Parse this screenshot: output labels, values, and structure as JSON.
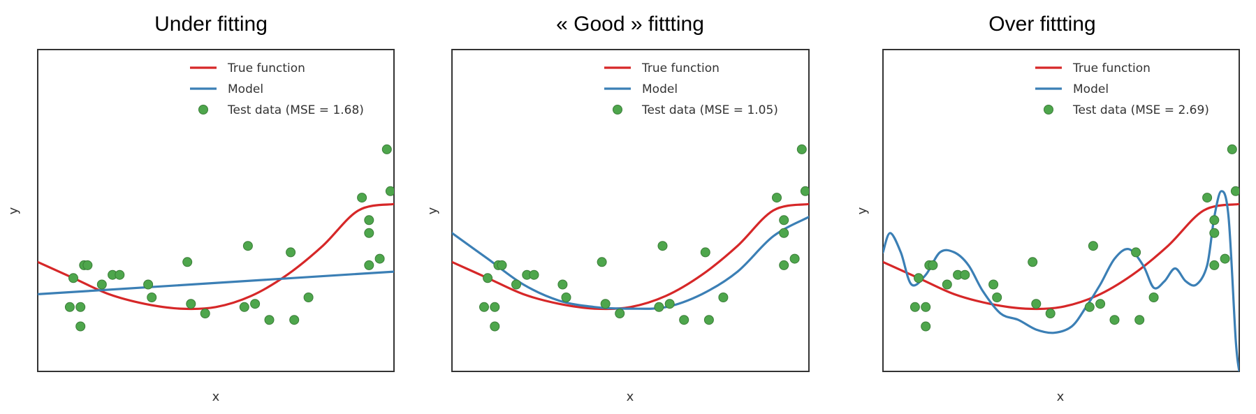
{
  "colors": {
    "true_function": "#d62728",
    "model": "#3b7fb5",
    "test_data": "#4ea64c",
    "test_data_edge": "#3a7d38",
    "frame": "#333333"
  },
  "chart_data": [
    {
      "type": "line",
      "title": "Under fitting",
      "xlabel": "x",
      "ylabel": "y",
      "xlim": [
        0,
        1
      ],
      "ylim": [
        0,
        1
      ],
      "grid": false,
      "legend_position": "top-right",
      "legend": [
        "True function",
        "Model",
        "Test data (MSE = 1.68)"
      ],
      "series": [
        {
          "name": "True function",
          "kind": "line",
          "x": [
            0.0,
            0.1,
            0.2,
            0.3,
            0.4,
            0.5,
            0.6,
            0.7,
            0.8,
            0.9,
            1.0
          ],
          "y": [
            0.34,
            0.29,
            0.24,
            0.21,
            0.195,
            0.2,
            0.235,
            0.3,
            0.39,
            0.5,
            0.52
          ]
        },
        {
          "name": "Model",
          "kind": "line",
          "x": [
            0.0,
            1.0
          ],
          "y": [
            0.24,
            0.31
          ]
        },
        {
          "name": "Test data (MSE = 1.68)",
          "kind": "scatter",
          "x": [
            0.09,
            0.1,
            0.12,
            0.12,
            0.13,
            0.14,
            0.18,
            0.21,
            0.23,
            0.31,
            0.32,
            0.42,
            0.43,
            0.47,
            0.58,
            0.59,
            0.61,
            0.65,
            0.71,
            0.72,
            0.76,
            0.91,
            0.93,
            0.93,
            0.93,
            0.96,
            0.98,
            0.99
          ],
          "y": [
            0.2,
            0.29,
            0.14,
            0.2,
            0.33,
            0.33,
            0.27,
            0.3,
            0.3,
            0.27,
            0.23,
            0.34,
            0.21,
            0.18,
            0.2,
            0.39,
            0.21,
            0.16,
            0.37,
            0.16,
            0.23,
            0.54,
            0.33,
            0.43,
            0.47,
            0.35,
            0.69,
            0.56
          ]
        }
      ]
    },
    {
      "type": "line",
      "title": "« Good » fittting",
      "xlabel": "x",
      "ylabel": "y",
      "xlim": [
        0,
        1
      ],
      "ylim": [
        0,
        1
      ],
      "grid": false,
      "legend_position": "top-right",
      "legend": [
        "True function",
        "Model",
        "Test data (MSE = 1.05)"
      ],
      "series": [
        {
          "name": "True function",
          "kind": "line",
          "x": [
            0.0,
            0.1,
            0.2,
            0.3,
            0.4,
            0.5,
            0.6,
            0.7,
            0.8,
            0.9,
            1.0
          ],
          "y": [
            0.34,
            0.29,
            0.24,
            0.21,
            0.195,
            0.2,
            0.235,
            0.3,
            0.39,
            0.5,
            0.52
          ]
        },
        {
          "name": "Model",
          "kind": "line",
          "x": [
            0.0,
            0.1,
            0.2,
            0.3,
            0.4,
            0.5,
            0.6,
            0.7,
            0.8,
            0.9,
            1.0
          ],
          "y": [
            0.43,
            0.35,
            0.27,
            0.22,
            0.2,
            0.195,
            0.2,
            0.24,
            0.31,
            0.42,
            0.48
          ]
        },
        {
          "name": "Test data (MSE = 1.05)",
          "kind": "scatter",
          "x": [
            0.09,
            0.1,
            0.12,
            0.12,
            0.13,
            0.14,
            0.18,
            0.21,
            0.23,
            0.31,
            0.32,
            0.42,
            0.43,
            0.47,
            0.58,
            0.59,
            0.61,
            0.65,
            0.71,
            0.72,
            0.76,
            0.91,
            0.93,
            0.93,
            0.93,
            0.96,
            0.98,
            0.99
          ],
          "y": [
            0.2,
            0.29,
            0.14,
            0.2,
            0.33,
            0.33,
            0.27,
            0.3,
            0.3,
            0.27,
            0.23,
            0.34,
            0.21,
            0.18,
            0.2,
            0.39,
            0.21,
            0.16,
            0.37,
            0.16,
            0.23,
            0.54,
            0.33,
            0.43,
            0.47,
            0.35,
            0.69,
            0.56
          ]
        }
      ]
    },
    {
      "type": "line",
      "title": "Over fittting",
      "xlabel": "x",
      "ylabel": "y",
      "xlim": [
        0,
        1
      ],
      "ylim": [
        0,
        1
      ],
      "grid": false,
      "legend_position": "top-right",
      "legend": [
        "True function",
        "Model",
        "Test data (MSE = 2.69)"
      ],
      "series": [
        {
          "name": "True function",
          "kind": "line",
          "x": [
            0.0,
            0.1,
            0.2,
            0.3,
            0.4,
            0.5,
            0.6,
            0.7,
            0.8,
            0.9,
            1.0
          ],
          "y": [
            0.34,
            0.29,
            0.24,
            0.21,
            0.195,
            0.2,
            0.235,
            0.3,
            0.39,
            0.5,
            0.52
          ]
        },
        {
          "name": "Model",
          "kind": "line",
          "x": [
            0.0,
            0.02,
            0.05,
            0.08,
            0.12,
            0.16,
            0.2,
            0.24,
            0.28,
            0.33,
            0.38,
            0.43,
            0.48,
            0.53,
            0.57,
            0.61,
            0.65,
            0.69,
            0.73,
            0.76,
            0.79,
            0.82,
            0.85,
            0.88,
            0.91,
            0.93,
            0.95,
            0.97,
            0.99,
            1.0
          ],
          "y": [
            0.37,
            0.43,
            0.37,
            0.27,
            0.3,
            0.37,
            0.37,
            0.33,
            0.25,
            0.18,
            0.16,
            0.13,
            0.12,
            0.14,
            0.2,
            0.27,
            0.35,
            0.38,
            0.33,
            0.26,
            0.28,
            0.32,
            0.28,
            0.27,
            0.33,
            0.48,
            0.56,
            0.48,
            0.1,
            0.0
          ]
        },
        {
          "name": "Test data (MSE = 2.69)",
          "kind": "scatter",
          "x": [
            0.09,
            0.1,
            0.12,
            0.12,
            0.13,
            0.14,
            0.18,
            0.21,
            0.23,
            0.31,
            0.32,
            0.42,
            0.43,
            0.47,
            0.58,
            0.59,
            0.61,
            0.65,
            0.71,
            0.72,
            0.76,
            0.91,
            0.93,
            0.93,
            0.93,
            0.96,
            0.98,
            0.99
          ],
          "y": [
            0.2,
            0.29,
            0.14,
            0.2,
            0.33,
            0.33,
            0.27,
            0.3,
            0.3,
            0.27,
            0.23,
            0.34,
            0.21,
            0.18,
            0.2,
            0.39,
            0.21,
            0.16,
            0.37,
            0.16,
            0.23,
            0.54,
            0.33,
            0.43,
            0.47,
            0.35,
            0.69,
            0.56
          ]
        }
      ]
    }
  ]
}
